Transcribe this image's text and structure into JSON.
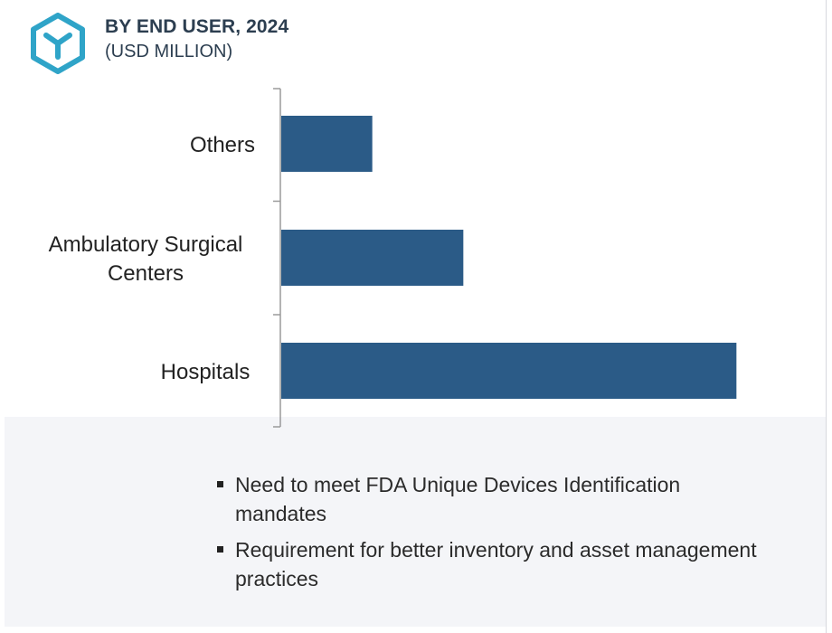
{
  "header": {
    "title": "BY END USER, 2024",
    "subtitle": "(USD MILLION)",
    "logo_icon": "hexagon-y-logo-icon",
    "logo_color": "#2fa4c8"
  },
  "chart_data": {
    "type": "bar",
    "orientation": "horizontal",
    "title": "BY END USER, 2024",
    "subtitle": "(USD MILLION)",
    "categories": [
      "Others",
      "Ambulatory Surgical Centers",
      "Hospitals"
    ],
    "category_lines": [
      [
        "Others"
      ],
      [
        "Ambulatory Surgical",
        "Centers"
      ],
      [
        "Hospitals"
      ]
    ],
    "values": [
      20,
      40,
      100
    ],
    "xlim": [
      0,
      120
    ],
    "xlabel": "",
    "ylabel": "",
    "bar_color": "#2b5b87",
    "grid": false,
    "legend": "none"
  },
  "notes": {
    "items": [
      {
        "lines": [
          "Need to meet FDA Unique Devices Identification",
          "mandates"
        ]
      },
      {
        "lines": [
          "Requirement for better inventory and asset management",
          "practices"
        ]
      }
    ]
  }
}
